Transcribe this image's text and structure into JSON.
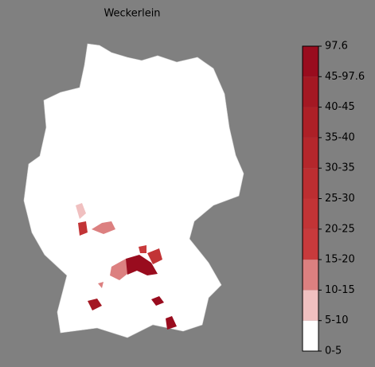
{
  "title": "Weckerlein",
  "colorbar": {
    "bins": [
      {
        "label": "0-5",
        "color": "#ffffff"
      },
      {
        "label": "5-10",
        "color": "#f0c0c0"
      },
      {
        "label": "10-15",
        "color": "#dc8080"
      },
      {
        "label": "15-20",
        "color": "#c83a3c"
      },
      {
        "label": "20-25",
        "color": "#c23436"
      },
      {
        "label": "25-30",
        "color": "#bc2e31"
      },
      {
        "label": "30-35",
        "color": "#b4272c"
      },
      {
        "label": "35-40",
        "color": "#ad2027"
      },
      {
        "label": "40-45",
        "color": "#a41823"
      },
      {
        "label": "45-97.6",
        "color": "#990c1e"
      }
    ],
    "max_label": "97.6"
  }
}
